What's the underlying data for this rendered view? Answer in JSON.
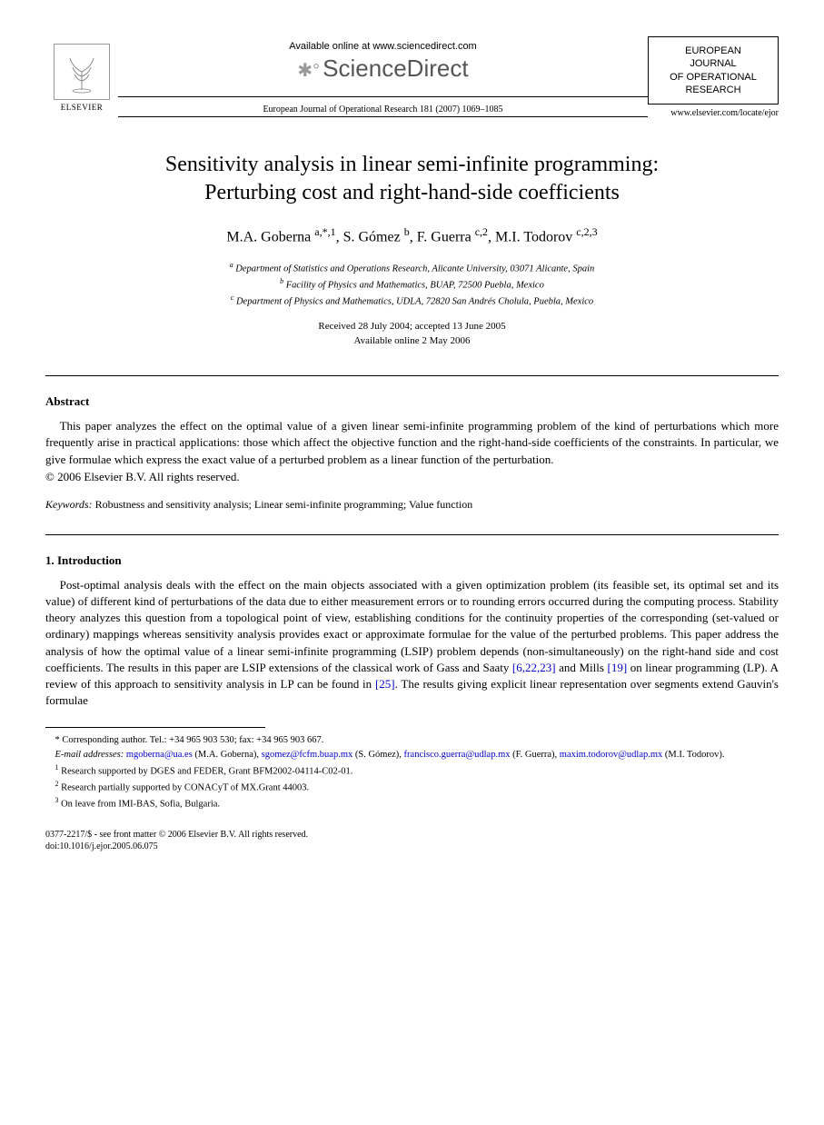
{
  "header": {
    "publisher_name": "ELSEVIER",
    "available_text": "Available online at www.sciencedirect.com",
    "platform_name": "ScienceDirect",
    "citation_line": "European Journal of Operational Research 181 (2007) 1069–1085",
    "journal_box_lines": [
      "EUROPEAN",
      "JOURNAL",
      "OF OPERATIONAL",
      "RESEARCH"
    ],
    "journal_url": "www.elsevier.com/locate/ejor"
  },
  "title_lines": [
    "Sensitivity analysis in linear semi-infinite programming:",
    "Perturbing cost and right-hand-side coefficients"
  ],
  "authors_html": "M.A. Goberna <sup>a,*,1</sup>, S. Gómez <sup>b</sup>, F. Guerra <sup>c,2</sup>, M.I. Todorov <sup>c,2,3</sup>",
  "affiliations": [
    "<sup>a</sup> Department of Statistics and Operations Research, Alicante University, 03071 Alicante, Spain",
    "<sup>b</sup> Facility of Physics and Mathematics, BUAP, 72500 Puebla, Mexico",
    "<sup>c</sup> Department of Physics and Mathematics, UDLA, 72820 San Andrés Cholula, Puebla, Mexico"
  ],
  "dates": [
    "Received 28 July 2004; accepted 13 June 2005",
    "Available online 2 May 2006"
  ],
  "abstract": {
    "heading": "Abstract",
    "text": "This paper analyzes the effect on the optimal value of a given linear semi-infinite programming problem of the kind of perturbations which more frequently arise in practical applications: those which affect the objective function and the right-hand-side coefficients of the constraints. In particular, we give formulae which express the exact value of a perturbed problem as a linear function of the perturbation.",
    "copyright": "© 2006 Elsevier B.V. All rights reserved."
  },
  "keywords": {
    "label": "Keywords:",
    "text": "Robustness and sensitivity analysis; Linear semi-infinite programming; Value function"
  },
  "section1": {
    "heading": "1. Introduction",
    "para": "Post-optimal analysis deals with the effect on the main objects associated with a given optimization problem (its feasible set, its optimal set and its value) of different kind of perturbations of the data due to either measurement errors or to rounding errors occurred during the computing process. Stability theory analyzes this question from a topological point of view, establishing conditions for the continuity properties of the corresponding (set-valued or ordinary) mappings whereas sensitivity analysis provides exact or approximate formulae for the value of the perturbed problems. This paper address the analysis of how the optimal value of a linear semi-infinite programming (LSIP) problem depends (non-simultaneously) on the right-hand side and cost coefficients. The results in this paper are LSIP extensions of the classical work of Gass and Saaty ",
    "refs1": "[6,22,23]",
    "mid1": " and Mills ",
    "refs2": "[19]",
    "mid2": " on linear programming (LP). A review of this approach to sensitivity analysis in LP can be found in ",
    "refs3": "[25]",
    "end": ". The results giving explicit linear representation over segments extend Gauvin's formulae"
  },
  "footnotes": {
    "corr": "* Corresponding author. Tel.: +34 965 903 530; fax: +34 965 903 667.",
    "email_label": "E-mail addresses:",
    "emails": [
      {
        "addr": "mgoberna@ua.es",
        "who": "(M.A. Goberna)"
      },
      {
        "addr": "sgomez@fcfm.buap.mx",
        "who": "(S. Gómez)"
      },
      {
        "addr": "francisco.guerra@udlap.mx",
        "who": "(F. Guerra)"
      },
      {
        "addr": "maxim.todorov@udlap.mx",
        "who": "(M.I. Todorov)."
      }
    ],
    "notes": [
      "<sup>1</sup> Research supported by DGES and FEDER, Grant BFM2002-04114-C02-01.",
      "<sup>2</sup> Research partially supported by CONACyT of MX.Grant 44003.",
      "<sup>3</sup> On leave from IMI-BAS, Sofia, Bulgaria."
    ]
  },
  "footer": {
    "line1": "0377-2217/$ - see front matter © 2006 Elsevier B.V. All rights reserved.",
    "line2": "doi:10.1016/j.ejor.2005.06.075"
  }
}
